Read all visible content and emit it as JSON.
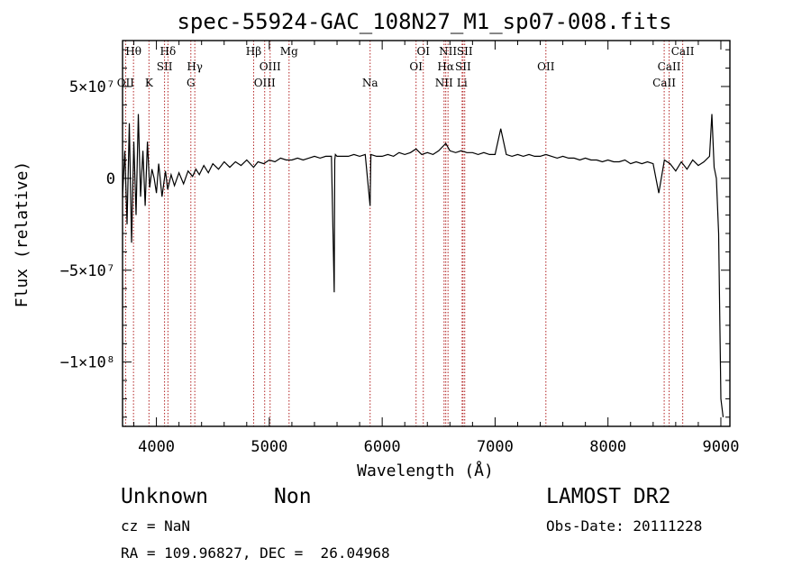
{
  "chart_data": {
    "type": "line",
    "title": "spec-55924-GAC_108N27_M1_sp07-008.fits",
    "xlabel": "Wavelength (Å)",
    "ylabel": "Flux (relative)",
    "xlim": [
      3700,
      9080
    ],
    "ylim": [
      -135000000,
      75000000
    ],
    "x_ticks": [
      4000,
      5000,
      6000,
      7000,
      8000,
      9000
    ],
    "x_tick_labels": [
      "4000",
      "5000",
      "6000",
      "7000",
      "8000",
      "9000"
    ],
    "y_ticks": [
      50000000,
      0,
      -50000000,
      -100000000
    ],
    "y_tick_labels": [
      "5×10⁷",
      "0",
      "−5×10⁷",
      "−1×10⁸"
    ],
    "grid": false,
    "line_color": "#000000",
    "line_marker_color": "#b22222",
    "series": [
      {
        "x": [
          3700,
          3720,
          3740,
          3760,
          3780,
          3800,
          3820,
          3840,
          3860,
          3880,
          3900,
          3920,
          3940,
          3960,
          3980,
          4000,
          4020,
          4050,
          4080,
          4100,
          4130,
          4160,
          4200,
          4240,
          4280,
          4320,
          4350,
          4380,
          4420,
          4460,
          4500,
          4550,
          4600,
          4650,
          4700,
          4750,
          4800,
          4861,
          4900,
          4950,
          5000,
          5050,
          5100,
          5150,
          5200,
          5250,
          5300,
          5350,
          5400,
          5450,
          5500,
          5550,
          5575,
          5580,
          5585,
          5600,
          5650,
          5700,
          5750,
          5800,
          5850,
          5893,
          5900,
          5950,
          6000,
          6050,
          6100,
          6150,
          6200,
          6250,
          6300,
          6350,
          6400,
          6450,
          6500,
          6563,
          6600,
          6650,
          6700,
          6750,
          6800,
          6850,
          6900,
          6950,
          7000,
          7050,
          7100,
          7150,
          7200,
          7250,
          7300,
          7350,
          7400,
          7450,
          7500,
          7550,
          7600,
          7650,
          7700,
          7750,
          7800,
          7850,
          7900,
          7950,
          8000,
          8050,
          8100,
          8150,
          8200,
          8250,
          8300,
          8350,
          8400,
          8450,
          8500,
          8550,
          8600,
          8650,
          8700,
          8750,
          8800,
          8850,
          8900,
          8920,
          8940,
          8960,
          8980,
          9000,
          9020
        ],
        "y": [
          -10000000,
          15000000,
          -25000000,
          30000000,
          -35000000,
          20000000,
          -20000000,
          35000000,
          -10000000,
          15000000,
          -15000000,
          20000000,
          -5000000,
          5000000,
          0,
          -8000000,
          8000000,
          -10000000,
          4000000,
          -6000000,
          2000000,
          -4000000,
          3000000,
          -3000000,
          4000000,
          1000000,
          5000000,
          2000000,
          7000000,
          3000000,
          8000000,
          5000000,
          9000000,
          6000000,
          9000000,
          7000000,
          10000000,
          6000000,
          9000000,
          8000000,
          10000000,
          9000000,
          11000000,
          10000000,
          10000000,
          11000000,
          10000000,
          11000000,
          12000000,
          11000000,
          12000000,
          12000000,
          -62000000,
          10000000,
          13000000,
          12000000,
          12000000,
          12000000,
          13000000,
          12000000,
          13000000,
          -15000000,
          13000000,
          12000000,
          12000000,
          13000000,
          12000000,
          14000000,
          13000000,
          14000000,
          16000000,
          13000000,
          14000000,
          13000000,
          15000000,
          19000000,
          15000000,
          14000000,
          15000000,
          14000000,
          14000000,
          13000000,
          14000000,
          13000000,
          13000000,
          27000000,
          13000000,
          12000000,
          13000000,
          12000000,
          13000000,
          12000000,
          12000000,
          13000000,
          12000000,
          11000000,
          12000000,
          11000000,
          11000000,
          10000000,
          11000000,
          10000000,
          10000000,
          9000000,
          10000000,
          9000000,
          9000000,
          10000000,
          8000000,
          9000000,
          8000000,
          9000000,
          8000000,
          -8000000,
          10000000,
          8000000,
          4000000,
          9000000,
          5000000,
          10000000,
          7000000,
          9000000,
          12000000,
          35000000,
          6000000,
          0,
          -30000000,
          -120000000,
          -130000000
        ]
      }
    ],
    "lines": [
      {
        "x": 3797,
        "label": "Hθ",
        "row": 0
      },
      {
        "x": 3727,
        "label": "OII",
        "row": 2
      },
      {
        "x": 3934,
        "label": "K",
        "row": 2
      },
      {
        "x": 4102,
        "label": "Hδ",
        "row": 0
      },
      {
        "x": 4072,
        "label": "SII",
        "row": 1
      },
      {
        "x": 4340,
        "label": "Hγ",
        "row": 1
      },
      {
        "x": 4305,
        "label": "G",
        "row": 2
      },
      {
        "x": 4861,
        "label": "Hβ",
        "row": 0
      },
      {
        "x": 5007,
        "label": "OIII",
        "row": 1
      },
      {
        "x": 4959,
        "label": "OIII",
        "row": 2
      },
      {
        "x": 5175,
        "label": "Mg",
        "row": 0
      },
      {
        "x": 5893,
        "label": "Na",
        "row": 2
      },
      {
        "x": 6364,
        "label": "OI",
        "row": 0
      },
      {
        "x": 6300,
        "label": "OI",
        "row": 1
      },
      {
        "x": 6583,
        "label": "NII",
        "row": 0
      },
      {
        "x": 6563,
        "label": "Hα",
        "row": 1
      },
      {
        "x": 6548,
        "label": "NII",
        "row": 2
      },
      {
        "x": 6731,
        "label": "SII",
        "row": 0
      },
      {
        "x": 6716,
        "label": "SII",
        "row": 1
      },
      {
        "x": 6708,
        "label": "Li",
        "row": 2
      },
      {
        "x": 7450,
        "label": "OII",
        "row": 1
      },
      {
        "x": 8662,
        "label": "CaII",
        "row": 0
      },
      {
        "x": 8542,
        "label": "CaII",
        "row": 1
      },
      {
        "x": 8498,
        "label": "CaII",
        "row": 2
      }
    ]
  },
  "info": {
    "class": "Unknown",
    "subclass": "Non",
    "cz": "cz = NaN",
    "coords": "RA = 109.96827, DEC =  26.04968",
    "survey": "LAMOST DR2",
    "obs_date": "Obs-Date: 20111228"
  }
}
